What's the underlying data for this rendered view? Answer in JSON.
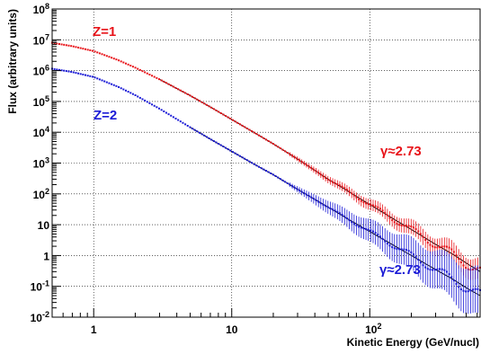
{
  "chart_data": {
    "type": "scatter",
    "xlabel": "Kinetic Energy (GeV/nucl)",
    "ylabel": "Flux (arbitrary units)",
    "xscale": "log",
    "yscale": "log",
    "xlim": [
      0.5,
      630
    ],
    "ylim": [
      0.01,
      100000000
    ],
    "grid": true,
    "x_tick_labels": [
      {
        "value": 1,
        "base": "1",
        "exp": ""
      },
      {
        "value": 10,
        "base": "10",
        "exp": ""
      },
      {
        "value": 100,
        "base": "10",
        "exp": "2"
      }
    ],
    "y_tick_labels": [
      {
        "value": 0.01,
        "base": "10",
        "exp": "-2"
      },
      {
        "value": 0.1,
        "base": "10",
        "exp": "-1"
      },
      {
        "value": 1,
        "base": "1",
        "exp": ""
      },
      {
        "value": 10,
        "base": "10",
        "exp": ""
      },
      {
        "value": 100,
        "base": "10",
        "exp": "2"
      },
      {
        "value": 1000,
        "base": "10",
        "exp": "3"
      },
      {
        "value": 10000,
        "base": "10",
        "exp": "4"
      },
      {
        "value": 100000,
        "base": "10",
        "exp": "5"
      },
      {
        "value": 1000000,
        "base": "10",
        "exp": "6"
      },
      {
        "value": 10000000,
        "base": "10",
        "exp": "7"
      },
      {
        "value": 100000000,
        "base": "10",
        "exp": "8"
      }
    ],
    "series": [
      {
        "label": "Z=1",
        "color": "#e8141a",
        "fit_color": "#000000",
        "x": [
          0.5,
          0.7,
          1,
          1.5,
          2,
          3,
          5,
          7,
          10,
          15,
          20,
          30,
          50,
          70,
          100,
          150,
          200,
          300,
          400,
          500,
          630
        ],
        "y": [
          8000000,
          6200000,
          4300000,
          2200000,
          1250000,
          520000,
          155000,
          66000,
          26000,
          9000,
          4200,
          1350,
          300,
          120,
          45,
          15,
          7,
          2.3,
          1.1,
          0.57,
          0.3
        ]
      },
      {
        "label": "Z=2",
        "color": "#1a1ad6",
        "fit_color": "#000000",
        "x": [
          0.5,
          0.7,
          1,
          1.5,
          2,
          3,
          5,
          7,
          10,
          15,
          20,
          30,
          50,
          70,
          100,
          150,
          200,
          300,
          400,
          500,
          630
        ],
        "y": [
          1150000,
          900000,
          620000,
          300000,
          160000,
          58000,
          14500,
          6000,
          2400,
          850,
          420,
          140,
          37,
          15,
          6,
          2.1,
          1.0,
          0.35,
          0.17,
          0.09,
          0.05
        ]
      }
    ],
    "annotations": [
      {
        "text": "Z=1",
        "color": "#e8141a",
        "series": 0
      },
      {
        "text": "Z=2",
        "color": "#1a1ad6",
        "series": 1
      },
      {
        "text": "γ≈2.73",
        "color": "#e8141a",
        "series": 0
      },
      {
        "text": "γ≈2.73",
        "color": "#1a1ad6",
        "series": 1
      }
    ]
  }
}
